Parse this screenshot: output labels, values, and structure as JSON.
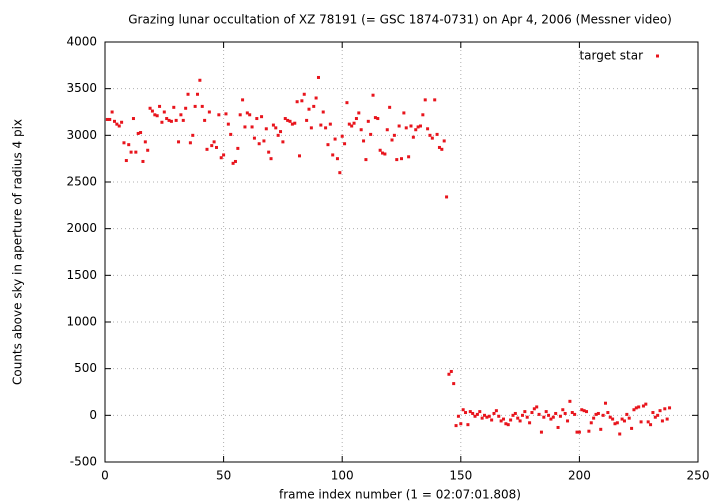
{
  "chart_data": {
    "type": "scatter",
    "title": "Grazing lunar occultation of XZ 78191 (= GSC 1874-0731) on Apr 4, 2006 (Messner video)",
    "x_label": "frame index number (1 = 02:07:01.808)",
    "y_label": "Counts above sky in aperture of radius 4 pix",
    "xlim": [
      0,
      250
    ],
    "xticks": [
      0,
      50,
      100,
      150,
      200,
      250
    ],
    "ylim": [
      -500,
      4000
    ],
    "yticks": [
      -500,
      0,
      500,
      1000,
      1500,
      2000,
      2500,
      3000,
      3500,
      4000
    ],
    "grid": true,
    "legend": "top-right",
    "x": [
      1,
      2,
      3,
      4,
      5,
      6,
      7,
      8,
      9,
      10,
      11,
      12,
      13,
      14,
      15,
      16,
      17,
      18,
      19,
      20,
      21,
      22,
      23,
      24,
      25,
      26,
      27,
      28,
      29,
      30,
      31,
      32,
      33,
      34,
      35,
      36,
      37,
      38,
      39,
      40,
      41,
      42,
      43,
      44,
      45,
      46,
      47,
      48,
      49,
      50,
      51,
      52,
      53,
      54,
      55,
      56,
      57,
      58,
      59,
      60,
      61,
      62,
      63,
      64,
      65,
      66,
      67,
      68,
      69,
      70,
      71,
      72,
      73,
      74,
      75,
      76,
      77,
      78,
      79,
      80,
      81,
      82,
      83,
      84,
      85,
      86,
      87,
      88,
      89,
      90,
      91,
      92,
      93,
      94,
      95,
      96,
      97,
      98,
      99,
      100,
      101,
      102,
      103,
      104,
      105,
      106,
      107,
      108,
      109,
      110,
      111,
      112,
      113,
      114,
      115,
      116,
      117,
      118,
      119,
      120,
      121,
      122,
      123,
      124,
      125,
      126,
      127,
      128,
      129,
      130,
      131,
      132,
      133,
      134,
      135,
      136,
      137,
      138,
      139,
      140,
      141,
      142,
      143,
      144,
      145,
      146,
      147,
      148,
      149,
      150,
      151,
      152,
      153,
      154,
      155,
      156,
      157,
      158,
      159,
      160,
      161,
      162,
      163,
      164,
      165,
      166,
      167,
      168,
      169,
      170,
      171,
      172,
      173,
      174,
      175,
      176,
      177,
      178,
      179,
      180,
      181,
      182,
      183,
      184,
      185,
      186,
      187,
      188,
      189,
      190,
      191,
      192,
      193,
      194,
      195,
      196,
      197,
      198,
      199,
      200,
      201,
      202,
      203,
      204,
      205,
      206,
      207,
      208,
      209,
      210,
      211,
      212,
      213,
      214,
      215,
      216,
      217,
      218,
      219,
      220,
      221,
      222,
      223,
      224,
      225,
      226,
      227,
      228,
      229,
      230,
      231,
      232,
      233,
      234,
      235,
      236,
      237,
      238
    ],
    "series": [
      {
        "name": "target star",
        "color": "#e8141c",
        "values": [
          3170,
          3170,
          3250,
          3150,
          3120,
          3100,
          3140,
          2920,
          2730,
          2900,
          2820,
          3180,
          2820,
          3020,
          3030,
          2720,
          2930,
          2840,
          3290,
          3260,
          3220,
          3210,
          3310,
          3140,
          3250,
          3180,
          3160,
          3150,
          3300,
          3160,
          2930,
          3220,
          3160,
          3290,
          3440,
          2920,
          3000,
          3310,
          3440,
          3590,
          3310,
          3160,
          2850,
          3250,
          2890,
          2930,
          2870,
          3220,
          2760,
          2790,
          3230,
          3120,
          3010,
          2700,
          2720,
          2860,
          3220,
          3380,
          3090,
          3240,
          3220,
          3090,
          2970,
          3180,
          2910,
          3200,
          2940,
          3070,
          2820,
          2750,
          3110,
          3080,
          3000,
          3040,
          2930,
          3180,
          3160,
          3150,
          3120,
          3130,
          3360,
          2780,
          3370,
          3440,
          3160,
          3280,
          3080,
          3310,
          3400,
          3620,
          3110,
          3250,
          3080,
          2900,
          3120,
          2790,
          2960,
          2750,
          2600,
          2990,
          2910,
          3350,
          3120,
          3100,
          3130,
          3180,
          3240,
          3060,
          2940,
          2740,
          3150,
          3010,
          3430,
          3190,
          3180,
          2840,
          2810,
          2800,
          3060,
          3300,
          2950,
          3000,
          2740,
          3100,
          2750,
          3240,
          3080,
          2770,
          3100,
          2980,
          3060,
          3090,
          3100,
          3220,
          3380,
          3070,
          3000,
          2970,
          3380,
          3010,
          2870,
          2850,
          2940,
          2340,
          440,
          470,
          340,
          -110,
          -10,
          -90,
          60,
          30,
          -100,
          40,
          20,
          -10,
          10,
          40,
          -30,
          0,
          -20,
          -10,
          -50,
          20,
          50,
          -10,
          -60,
          -40,
          -90,
          -100,
          -50,
          0,
          20,
          -30,
          -60,
          0,
          40,
          -20,
          -80,
          30,
          70,
          90,
          10,
          -180,
          -20,
          40,
          0,
          -40,
          -20,
          20,
          -130,
          -10,
          60,
          20,
          -60,
          150,
          30,
          10,
          -180,
          -180,
          60,
          50,
          40,
          -170,
          -80,
          -30,
          10,
          20,
          -150,
          0,
          130,
          30,
          -20,
          -40,
          -90,
          -80,
          -200,
          -40,
          -60,
          10,
          -30,
          -140,
          60,
          80,
          90,
          -70,
          100,
          120,
          -70,
          -100,
          30,
          -20,
          0,
          50,
          -60,
          70,
          -40,
          80
        ]
      }
    ]
  }
}
